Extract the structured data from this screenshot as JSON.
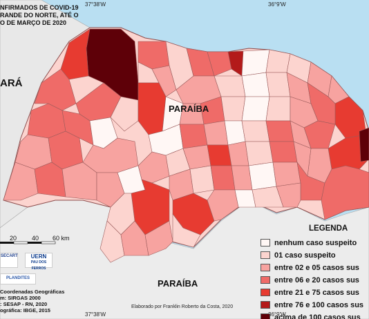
{
  "title_lines": [
    "NFIRMADOS DE COVID-19",
    "RANDE DO NORTE, ATÉ O",
    "O DE MARÇO DE 2020"
  ],
  "coords": {
    "top_left": "37°38'W",
    "top_right": "36°9'W",
    "bottom_left": "37°38'W",
    "bottom_right": "36°9'W"
  },
  "neighbors": {
    "west": "ARÁ",
    "south_west": "PARAÍBA",
    "south": "PARAÍBA"
  },
  "scale": {
    "ticks": [
      "20",
      "40",
      "60 km"
    ]
  },
  "logos": {
    "secart": "SECART",
    "uern": "UERN",
    "uern_sub": "PAU DOS FERROS",
    "plandites": "PLANDITES"
  },
  "meta_lines": [
    "Coordenadas Geográficas",
    "m: SIRGAS 2000",
    ": SESAP - RN, 2020",
    "ográfica: IBGE, 2015"
  ],
  "credit": "Elaborado por Franklin Roberto da Costa, 2020",
  "legend": {
    "title": "LEGENDA",
    "items": [
      {
        "label": "nenhum caso suspeito",
        "color": "#fff7f5"
      },
      {
        "label": "01 caso suspeito",
        "color": "#fcd4cf"
      },
      {
        "label": "entre 02 e 05 casos sus",
        "color": "#f7a3a0"
      },
      {
        "label": "entre 06 e 20 casos sus",
        "color": "#ef6b68"
      },
      {
        "label": "entre 21 e 75 casos sus",
        "color": "#e73b31"
      },
      {
        "label": "entre 76 e 100 casos sus",
        "color": "#b31a1a"
      },
      {
        "label": "acima de 100 casos sus",
        "color": "#5e0008"
      }
    ]
  }
}
